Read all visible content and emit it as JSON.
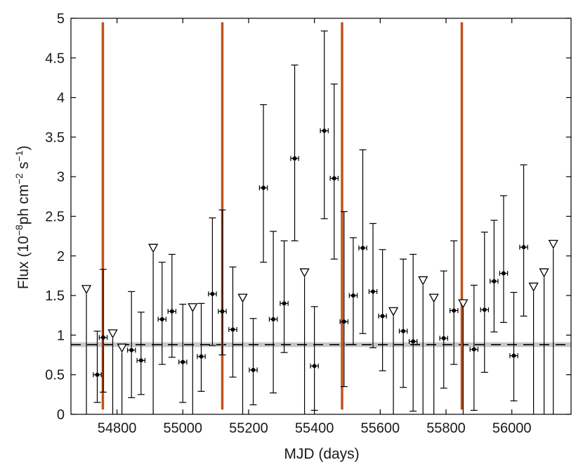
{
  "chart_data": {
    "type": "scatter",
    "xlabel": "MJD (days)",
    "ylabel_parts": [
      "Flux (10",
      "−8",
      "ph cm",
      "−2",
      " s",
      "−1",
      ")"
    ],
    "xlim": [
      54660,
      56180
    ],
    "ylim": [
      0,
      5
    ],
    "x_ticks": [
      54800,
      55000,
      55200,
      55400,
      55600,
      55800,
      56000
    ],
    "y_ticks": [
      0,
      0.5,
      1,
      1.5,
      2,
      2.5,
      3,
      3.5,
      4,
      4.5,
      5
    ],
    "y_tick_labels": [
      "0",
      "0.5",
      "1",
      "1.5",
      "2",
      "2.5",
      "3",
      "3.5",
      "4",
      "4.5",
      "5"
    ],
    "grid": false,
    "baseline": {
      "value": 0.88,
      "band": [
        0.85,
        0.91
      ],
      "color": "#000000",
      "band_color": "#c8c8c8"
    },
    "vertical_lines": {
      "x": [
        54757,
        55120,
        55484,
        55848
      ],
      "y_range": [
        0.06,
        4.95
      ],
      "color": "#c2521c"
    },
    "detections": {
      "marker": "dot",
      "color": "#000000",
      "points": [
        {
          "x": 54740,
          "y": 0.5,
          "ylo": 0.15,
          "yhi": 1.05,
          "xerr": 12
        },
        {
          "x": 54758,
          "y": 0.97,
          "ylo": 0.28,
          "yhi": 1.83,
          "xerr": 12
        },
        {
          "x": 54844,
          "y": 0.81,
          "ylo": 0.21,
          "yhi": 1.55,
          "xerr": 12
        },
        {
          "x": 54873,
          "y": 0.68,
          "ylo": 0.25,
          "yhi": 1.29,
          "xerr": 12
        },
        {
          "x": 54937,
          "y": 1.2,
          "ylo": 0.63,
          "yhi": 1.92,
          "xerr": 12
        },
        {
          "x": 54967,
          "y": 1.3,
          "ylo": 0.72,
          "yhi": 2.02,
          "xerr": 12
        },
        {
          "x": 55000,
          "y": 0.66,
          "ylo": 0.15,
          "yhi": 1.39,
          "xerr": 12
        },
        {
          "x": 55056,
          "y": 0.73,
          "ylo": 0.29,
          "yhi": 1.4,
          "xerr": 12
        },
        {
          "x": 55090,
          "y": 1.52,
          "ylo": 0.87,
          "yhi": 2.48,
          "xerr": 12
        },
        {
          "x": 55120,
          "y": 1.3,
          "ylo": 0.75,
          "yhi": 2.58,
          "xerr": 12
        },
        {
          "x": 55152,
          "y": 1.07,
          "ylo": 0.47,
          "yhi": 1.86,
          "xerr": 12
        },
        {
          "x": 55214,
          "y": 0.56,
          "ylo": 0.12,
          "yhi": 1.21,
          "xerr": 12
        },
        {
          "x": 55245,
          "y": 2.86,
          "ylo": 1.92,
          "yhi": 3.91,
          "xerr": 12
        },
        {
          "x": 55275,
          "y": 1.2,
          "ylo": 0.27,
          "yhi": 2.31,
          "xerr": 12
        },
        {
          "x": 55308,
          "y": 1.4,
          "ylo": 0.78,
          "yhi": 2.19,
          "xerr": 12
        },
        {
          "x": 55340,
          "y": 3.23,
          "ylo": 2.19,
          "yhi": 4.41,
          "xerr": 12
        },
        {
          "x": 55400,
          "y": 0.61,
          "ylo": 0.05,
          "yhi": 1.36,
          "xerr": 12
        },
        {
          "x": 55430,
          "y": 3.58,
          "ylo": 2.47,
          "yhi": 4.84,
          "xerr": 12
        },
        {
          "x": 55460,
          "y": 2.98,
          "ylo": 1.96,
          "yhi": 4.17,
          "xerr": 12
        },
        {
          "x": 55490,
          "y": 1.17,
          "ylo": 0.35,
          "yhi": 2.56,
          "xerr": 12
        },
        {
          "x": 55518,
          "y": 1.5,
          "ylo": 0.88,
          "yhi": 2.23,
          "xerr": 12
        },
        {
          "x": 55547,
          "y": 2.1,
          "ylo": 1.02,
          "yhi": 3.34,
          "xerr": 12
        },
        {
          "x": 55578,
          "y": 1.55,
          "ylo": 0.84,
          "yhi": 2.41,
          "xerr": 12
        },
        {
          "x": 55607,
          "y": 1.24,
          "ylo": 0.55,
          "yhi": 2.08,
          "xerr": 12
        },
        {
          "x": 55670,
          "y": 1.05,
          "ylo": 0.34,
          "yhi": 1.96,
          "xerr": 12
        },
        {
          "x": 55700,
          "y": 0.92,
          "ylo": 0.04,
          "yhi": 2.02,
          "xerr": 12
        },
        {
          "x": 55793,
          "y": 0.96,
          "ylo": 0.33,
          "yhi": 1.81,
          "xerr": 12
        },
        {
          "x": 55824,
          "y": 1.31,
          "ylo": 0.63,
          "yhi": 2.19,
          "xerr": 12
        },
        {
          "x": 55885,
          "y": 0.82,
          "ylo": 0.05,
          "yhi": 1.63,
          "xerr": 12
        },
        {
          "x": 55917,
          "y": 1.32,
          "ylo": 0.53,
          "yhi": 2.3,
          "xerr": 12
        },
        {
          "x": 55946,
          "y": 1.68,
          "ylo": 1.04,
          "yhi": 2.45,
          "xerr": 12
        },
        {
          "x": 55975,
          "y": 1.78,
          "ylo": 1.16,
          "yhi": 2.76,
          "xerr": 12
        },
        {
          "x": 56006,
          "y": 0.74,
          "ylo": 0.17,
          "yhi": 1.54,
          "xerr": 12
        },
        {
          "x": 56036,
          "y": 2.11,
          "ylo": 1.24,
          "yhi": 3.15,
          "xerr": 12
        }
      ]
    },
    "upper_limits": {
      "marker": "triangle-down",
      "color": "#000000",
      "points": [
        {
          "x": 54707,
          "y": 1.6
        },
        {
          "x": 54787,
          "y": 1.04
        },
        {
          "x": 54815,
          "y": 0.86
        },
        {
          "x": 54910,
          "y": 2.12
        },
        {
          "x": 55030,
          "y": 1.37
        },
        {
          "x": 55182,
          "y": 1.49
        },
        {
          "x": 55370,
          "y": 1.81
        },
        {
          "x": 55640,
          "y": 1.32
        },
        {
          "x": 55730,
          "y": 1.71
        },
        {
          "x": 55763,
          "y": 1.49
        },
        {
          "x": 55852,
          "y": 1.42
        },
        {
          "x": 56066,
          "y": 1.63
        },
        {
          "x": 56098,
          "y": 1.81
        },
        {
          "x": 56126,
          "y": 2.17
        }
      ]
    }
  }
}
